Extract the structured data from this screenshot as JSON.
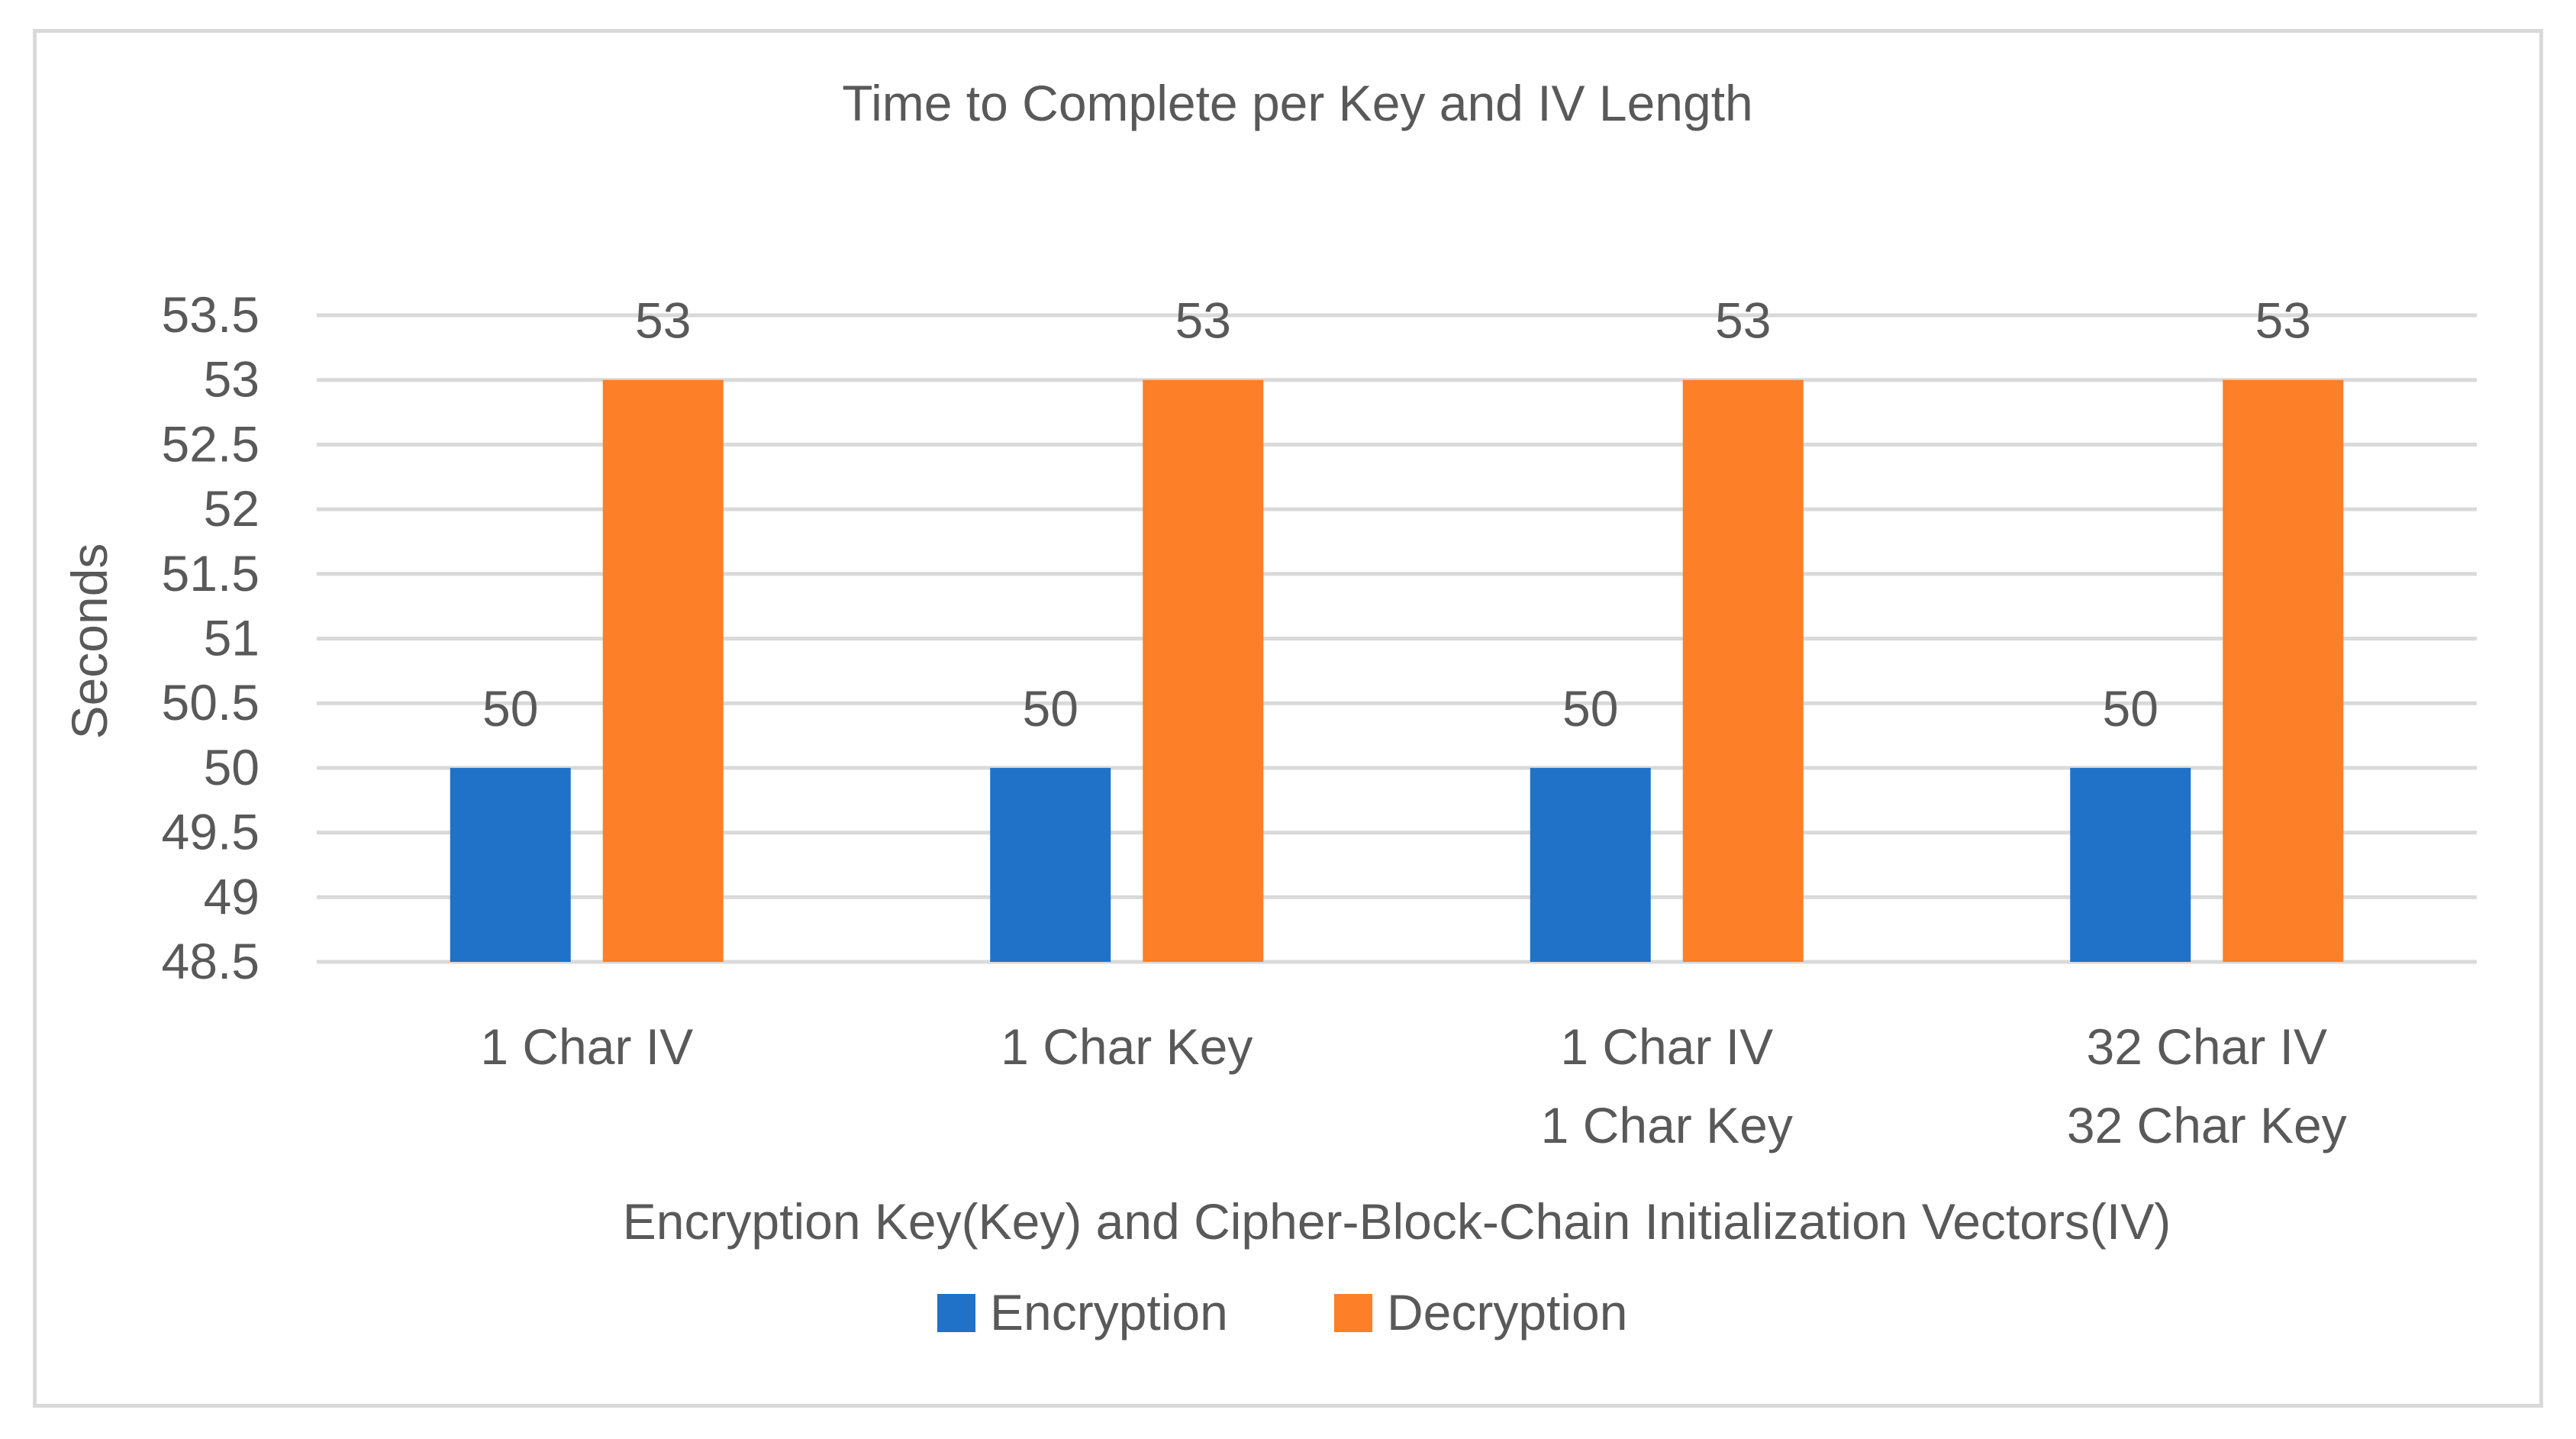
{
  "chart_data": {
    "type": "bar",
    "title": "Time to Complete per Key and IV Length",
    "xlabel": "Encryption Key(Key) and Cipher-Block-Chain Initialization Vectors(IV)",
    "ylabel": "Seconds",
    "categories": [
      [
        "1 Char IV"
      ],
      [
        "1 Char Key"
      ],
      [
        "1 Char IV",
        "1 Char Key"
      ],
      [
        "32 Char IV",
        "32 Char Key"
      ]
    ],
    "series": [
      {
        "name": "Encryption",
        "color": "#1f72c7",
        "values": [
          50,
          50,
          50,
          50
        ]
      },
      {
        "name": "Decryption",
        "color": "#fd7f27",
        "values": [
          53,
          53,
          53,
          53
        ]
      }
    ],
    "ylim": [
      48.5,
      53.5
    ],
    "yticks": [
      "48.5",
      "49",
      "49.5",
      "50",
      "50.5",
      "51",
      "51.5",
      "52",
      "52.5",
      "53",
      "53.5"
    ],
    "grid": true,
    "data_labels": true,
    "legend_position": "bottom"
  },
  "colors": {
    "text": "#595959",
    "gridline": "#d9d9d9",
    "border": "#d9d9d9"
  }
}
